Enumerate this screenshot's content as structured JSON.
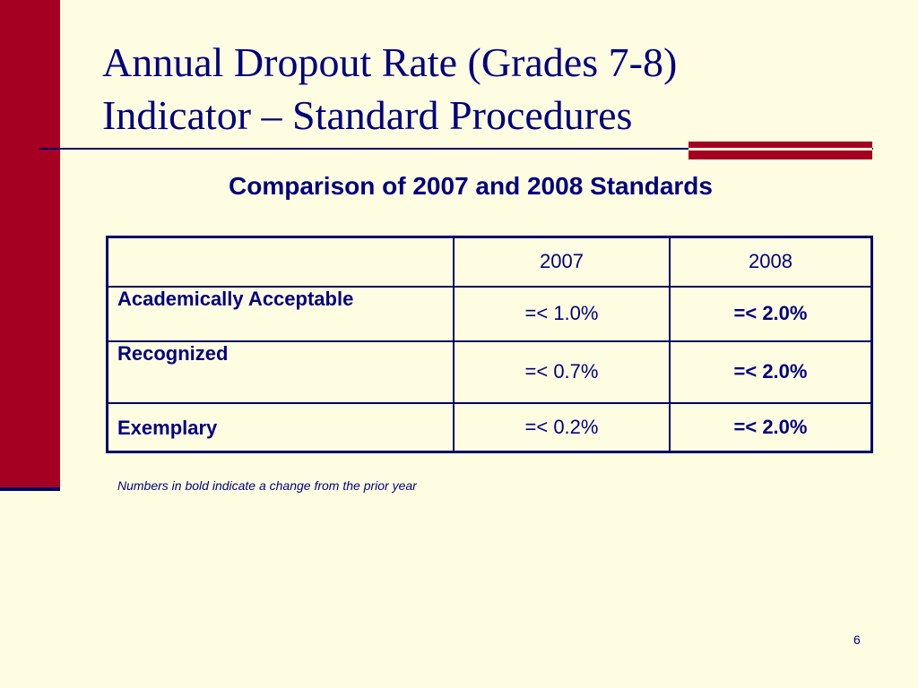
{
  "slide": {
    "title_lines": [
      "Annual Dropout Rate (Grades 7-8)",
      "Indicator – Standard Procedures"
    ],
    "subtitle": "Comparison of 2007 and 2008 Standards",
    "footnote": "Numbers in bold indicate a change from the prior year",
    "page_number": "6"
  },
  "table": {
    "headers": [
      "",
      "2007",
      "2008"
    ],
    "rows": [
      {
        "label": "Academically Acceptable",
        "v2007": "=< 1.0%",
        "v2008": "=< 2.0%"
      },
      {
        "label": "Recognized",
        "v2007": "=< 0.7%",
        "v2008": "=< 2.0%"
      },
      {
        "label": "Exemplary",
        "v2007": "=< 0.2%",
        "v2008": "=< 2.0%"
      }
    ]
  },
  "colors": {
    "background": "#FFFDE1",
    "accent_red": "#A50021",
    "navy": "#000080"
  }
}
